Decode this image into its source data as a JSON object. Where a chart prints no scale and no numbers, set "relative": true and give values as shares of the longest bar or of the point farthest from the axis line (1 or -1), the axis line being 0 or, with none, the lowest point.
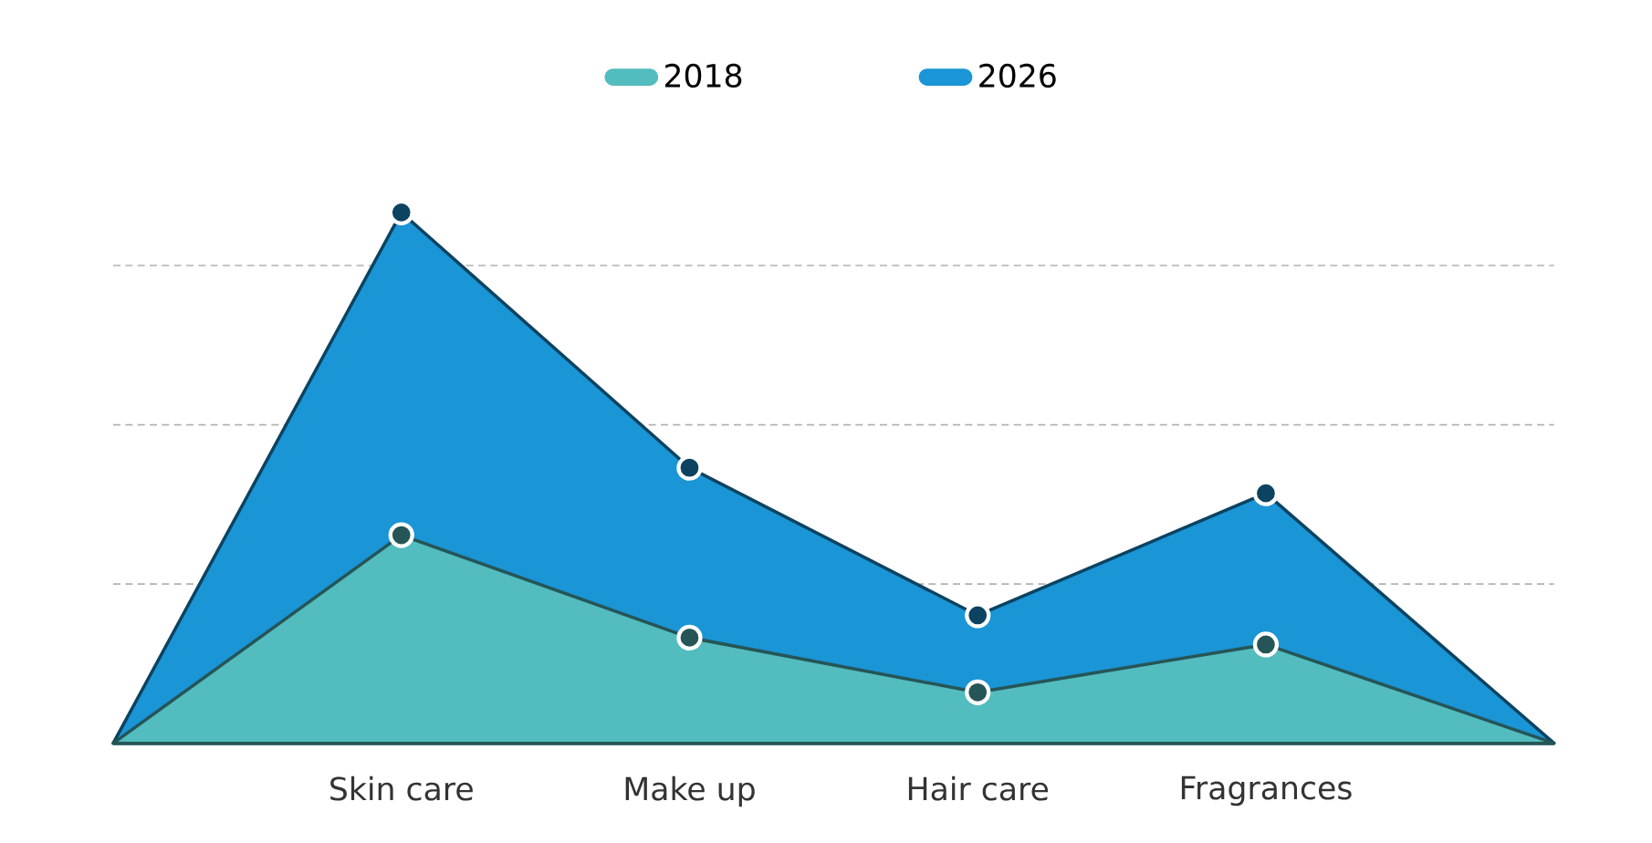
{
  "chart_data": {
    "type": "area",
    "relative": true,
    "categories": [
      null,
      "Skin care",
      "Make up",
      "Hair care",
      "Fragrances",
      null
    ],
    "series": [
      {
        "name": "2018",
        "color": "#52bcbf",
        "values": [
          0,
          0.392,
          0.199,
          0.096,
          0.186,
          0
        ]
      },
      {
        "name": "2026",
        "color": "#1a95d6",
        "values": [
          0,
          1,
          0.519,
          0.241,
          0.471,
          0
        ]
      }
    ],
    "grid": "y",
    "legend": "top",
    "marker": "circle"
  }
}
